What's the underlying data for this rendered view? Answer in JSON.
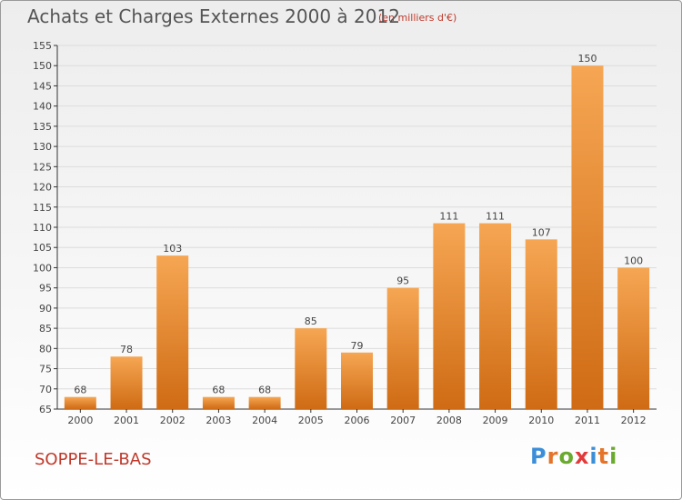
{
  "header": {
    "title": "Achats et Charges Externes 2000 à 2012",
    "subtitle": "(en milliers d'€)"
  },
  "footer": {
    "commune": "SOPPE-LE-BAS",
    "logo_text": "Proxiti",
    "logo_colors": [
      "#3b8fd9",
      "#e5742b",
      "#6aaa2e",
      "#e23a3a",
      "#3b8fd9",
      "#e5742b",
      "#6aaa2e"
    ]
  },
  "colors": {
    "bar_top": "#f6a653",
    "bar_bottom": "#cf6b14",
    "grid": "#dcdcdc",
    "axis": "#333333"
  },
  "chart_data": {
    "type": "bar",
    "title": "Achats et Charges Externes 2000 à 2012",
    "subtitle": "(en milliers d'€)",
    "categories": [
      "2000",
      "2001",
      "2002",
      "2003",
      "2004",
      "2005",
      "2006",
      "2007",
      "2008",
      "2009",
      "2010",
      "2011",
      "2012"
    ],
    "values": [
      68,
      78,
      103,
      68,
      68,
      85,
      79,
      95,
      111,
      111,
      107,
      150,
      100
    ],
    "ylim": [
      65,
      155
    ],
    "yticks": [
      65,
      70,
      75,
      80,
      85,
      90,
      95,
      100,
      105,
      110,
      115,
      120,
      125,
      130,
      135,
      140,
      145,
      150,
      155
    ],
    "grid": true,
    "show_value_labels": true
  }
}
